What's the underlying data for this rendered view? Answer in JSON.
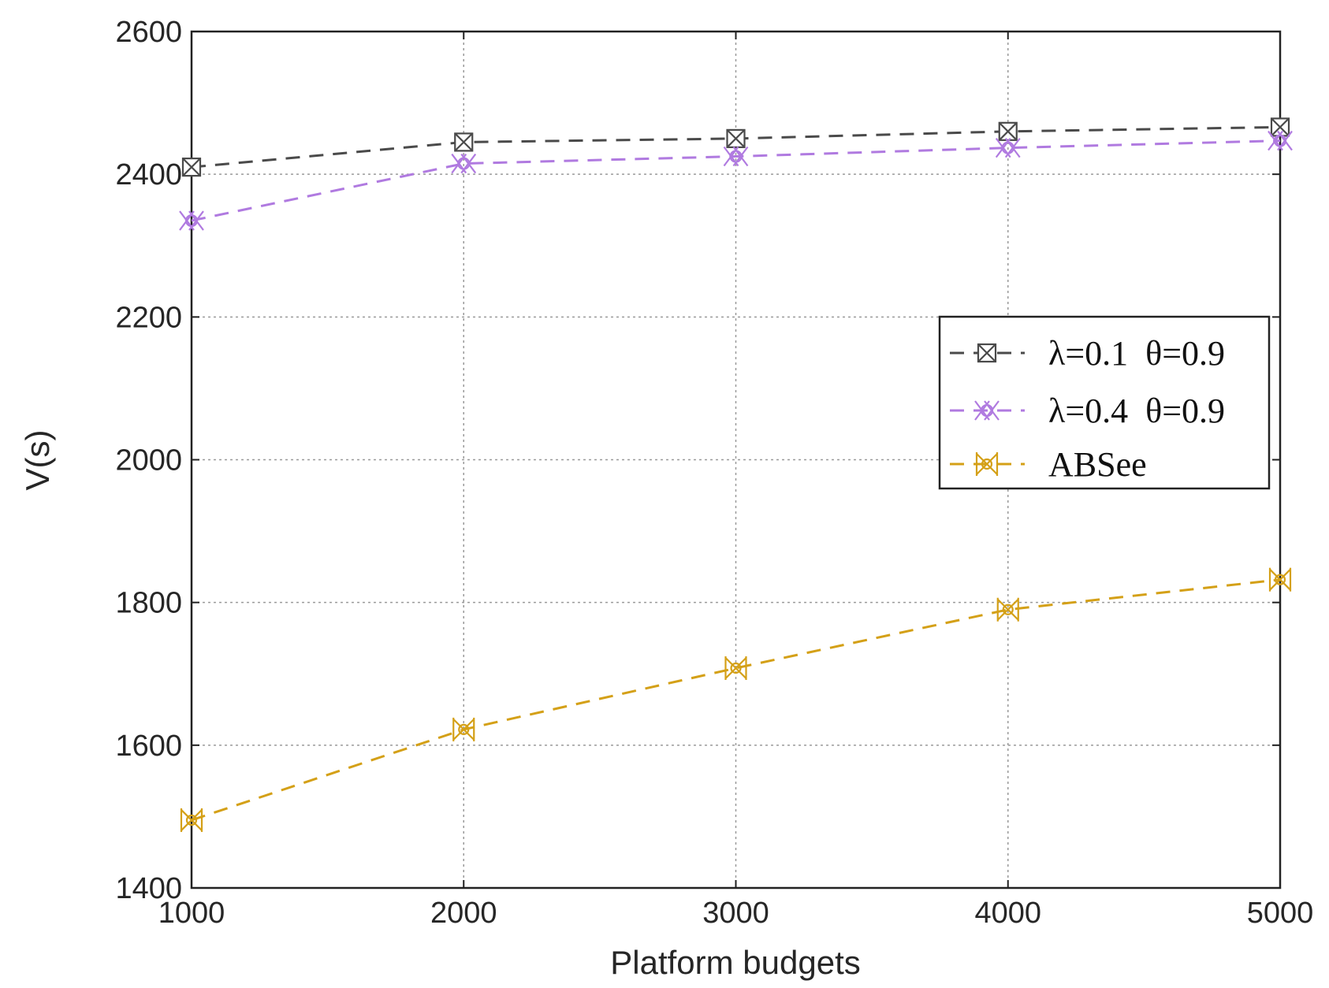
{
  "chart_data": {
    "type": "line",
    "xlabel": "Platform budgets",
    "ylabel": "V(s)",
    "xlim": [
      1000,
      5000
    ],
    "ylim": [
      1400,
      2600
    ],
    "x_ticks": [
      1000,
      2000,
      3000,
      4000,
      5000
    ],
    "x_tick_labels": [
      "1000",
      "2000",
      "3000",
      "4000",
      "5000"
    ],
    "y_ticks": [
      1400,
      1600,
      1800,
      2000,
      2200,
      2400,
      2600
    ],
    "y_tick_labels": [
      "1400",
      "1600",
      "1800",
      "2000",
      "2200",
      "2400",
      "2600"
    ],
    "grid": true,
    "legend_position": "center-right",
    "x": [
      1000,
      2000,
      3000,
      4000,
      5000
    ],
    "series": [
      {
        "name": "λ=0.1  θ=0.9",
        "values": [
          2410,
          2445,
          2450,
          2460,
          2466
        ],
        "color": "#4a4a4a",
        "marker": "boxed-x"
      },
      {
        "name": "λ=0.4  θ=0.9",
        "values": [
          2335,
          2415,
          2425,
          2437,
          2447
        ],
        "color": "#b07ae0",
        "marker": "double-x"
      },
      {
        "name": "ABSee",
        "values": [
          1495,
          1622,
          1708,
          1790,
          1832
        ],
        "color": "#d4a017",
        "marker": "bowtie-x"
      }
    ]
  }
}
